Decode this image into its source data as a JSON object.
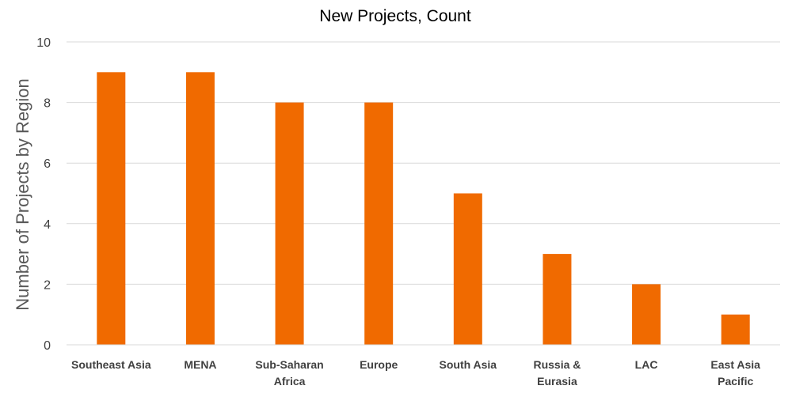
{
  "chart_data": {
    "type": "bar",
    "title": "New Projects, Count",
    "xlabel": "",
    "ylabel": "Number of Projects by Region",
    "ylim": [
      0,
      10
    ],
    "yticks": [
      0,
      2,
      4,
      6,
      8,
      10
    ],
    "grid": true,
    "legend": "none",
    "bar_color": "#F06A00",
    "categories": [
      [
        "Southeast Asia"
      ],
      [
        "MENA"
      ],
      [
        "Sub-Saharan",
        "Africa"
      ],
      [
        "Europe"
      ],
      [
        "South Asia"
      ],
      [
        "Russia &",
        "Eurasia"
      ],
      [
        "LAC"
      ],
      [
        "East Asia",
        "Pacific"
      ]
    ],
    "values": [
      9,
      9,
      8,
      8,
      5,
      3,
      2,
      1
    ]
  }
}
